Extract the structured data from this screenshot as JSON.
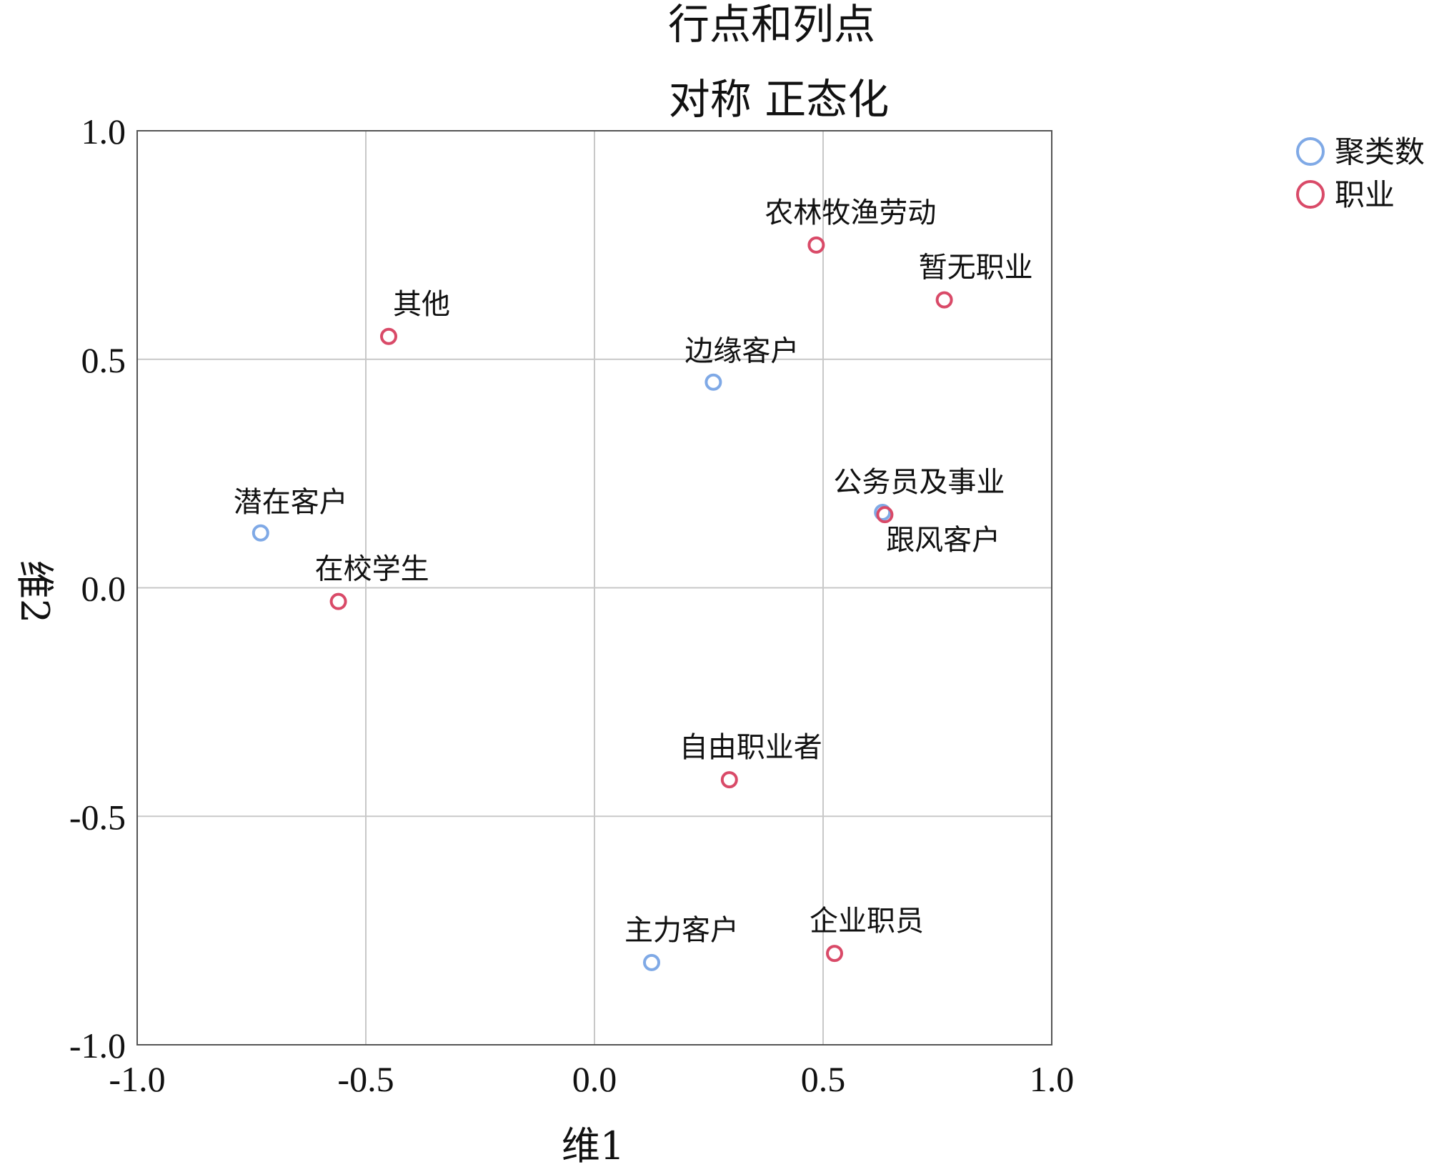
{
  "chart_data": {
    "type": "scatter",
    "title_line1": "行点和列点",
    "title_line2": "对称  正态化",
    "xlabel": "维1",
    "ylabel": "维2",
    "xlim": [
      -1.0,
      1.0
    ],
    "ylim": [
      -1.0,
      1.0
    ],
    "xticks": [
      "-1.0",
      "-0.5",
      "0.0",
      "0.5",
      "1.0"
    ],
    "yticks": [
      "1.0",
      "0.5",
      "0.0",
      "-0.5",
      "-1.0"
    ],
    "grid": true,
    "legend_position": "top-right",
    "series": [
      {
        "name": "聚类数",
        "color": "#7fa9e6",
        "points": [
          {
            "label": "边缘客户",
            "x": 0.26,
            "y": 0.45
          },
          {
            "label": "潜在客户",
            "x": -0.73,
            "y": 0.12
          },
          {
            "label": "跟风客户",
            "x": 0.63,
            "y": 0.165
          },
          {
            "label": "主力客户",
            "x": 0.125,
            "y": -0.82
          }
        ]
      },
      {
        "name": "职业",
        "color": "#d94a68",
        "points": [
          {
            "label": "农林牧渔劳动",
            "x": 0.485,
            "y": 0.75
          },
          {
            "label": "暂无职业",
            "x": 0.765,
            "y": 0.63
          },
          {
            "label": "其他",
            "x": -0.45,
            "y": 0.55
          },
          {
            "label": "公务员及事业",
            "x": 0.635,
            "y": 0.16
          },
          {
            "label": "在校学生",
            "x": -0.56,
            "y": -0.03
          },
          {
            "label": "自由职业者",
            "x": 0.295,
            "y": -0.42
          },
          {
            "label": "企业职员",
            "x": 0.525,
            "y": -0.8
          }
        ]
      }
    ]
  }
}
